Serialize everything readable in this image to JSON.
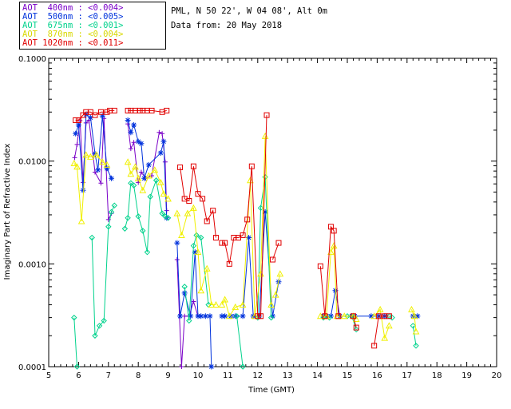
{
  "header": {
    "site": "PML, N 50 22', W 04 08', Alt 0m",
    "date": "Data from: 20 May 2018"
  },
  "legend": [
    {
      "label": "AOT  400nm : <0.004>",
      "color": "#7a00c8"
    },
    {
      "label": "AOT  500nm : <0.005>",
      "color": "#0032dc"
    },
    {
      "label": "AOT  675nm : <0.001>",
      "color": "#00d28c"
    },
    {
      "label": "AOT  870nm : <0.004>",
      "color": "#f0f000"
    },
    {
      "label": "AOT 1020nm : <0.011>",
      "color": "#e00000"
    }
  ],
  "chart_data": {
    "type": "line",
    "xlabel": "Time (GMT)",
    "ylabel": "Imaginary Part of Refractive Index",
    "xlim": [
      5,
      20
    ],
    "ylim": [
      0.0001,
      0.1
    ],
    "yscale": "log",
    "x_ticks": [
      "5",
      "6",
      "7",
      "8",
      "9",
      "10",
      "11",
      "12",
      "13",
      "14",
      "15",
      "16",
      "17",
      "18",
      "19",
      "20"
    ],
    "y_ticks": [
      "0.0001",
      "0.0010",
      "0.0100",
      "0.1000"
    ],
    "grid": false,
    "series": [
      {
        "name": "AOT  400nm : <0.004>",
        "color": "#7a00c8",
        "marker": "plus",
        "segments": [
          [
            [
              5.87,
              0.0108
            ],
            [
              5.95,
              0.0145
            ],
            [
              6.05,
              0.0248
            ],
            [
              6.15,
              0.0062
            ],
            [
              6.25,
              0.0235
            ],
            [
              6.35,
              0.025
            ],
            [
              6.55,
              0.0078
            ],
            [
              6.75,
              0.0061
            ],
            [
              6.85,
              0.026
            ],
            [
              7.0,
              0.0027
            ],
            [
              7.1,
              0.0031
            ]
          ],
          [
            [
              7.65,
              0.023
            ],
            [
              7.75,
              0.0132
            ],
            [
              7.85,
              0.0152
            ],
            [
              8.0,
              0.0062
            ],
            [
              8.1,
              0.0078
            ],
            [
              8.25,
              0.0068
            ],
            [
              8.45,
              0.0072
            ],
            [
              8.7,
              0.019
            ],
            [
              8.8,
              0.0185
            ],
            [
              8.9,
              0.0098
            ],
            [
              8.95,
              0.0033
            ]
          ],
          [
            [
              9.3,
              0.0011
            ],
            [
              9.45,
              0.0001
            ],
            [
              9.55,
              0.00031
            ],
            [
              9.7,
              0.00031
            ],
            [
              9.85,
              0.00043
            ],
            [
              10.0,
              0.00031
            ]
          ]
        ]
      },
      {
        "name": "AOT  500nm : <0.005>",
        "color": "#0032dc",
        "marker": "star",
        "segments": [
          [
            [
              5.9,
              0.0185
            ],
            [
              6.0,
              0.0225
            ],
            [
              6.15,
              0.0052
            ],
            [
              6.25,
              0.0285
            ],
            [
              6.4,
              0.0265
            ],
            [
              6.55,
              0.0118
            ],
            [
              6.65,
              0.0082
            ],
            [
              6.8,
              0.0275
            ],
            [
              6.95,
              0.0085
            ],
            [
              7.1,
              0.0068
            ]
          ],
          [
            [
              7.65,
              0.025
            ],
            [
              7.75,
              0.019
            ],
            [
              7.85,
              0.0225
            ],
            [
              8.0,
              0.0155
            ],
            [
              8.1,
              0.0148
            ],
            [
              8.2,
              0.0068
            ],
            [
              8.35,
              0.0092
            ],
            [
              8.75,
              0.012
            ],
            [
              8.85,
              0.0155
            ],
            [
              8.95,
              0.0028
            ]
          ],
          [
            [
              9.3,
              0.0016
            ],
            [
              9.4,
              0.00031
            ],
            [
              9.55,
              0.00052
            ],
            [
              9.75,
              0.00031
            ],
            [
              9.9,
              0.0013
            ],
            [
              10.0,
              0.00031
            ],
            [
              10.1,
              0.00031
            ],
            [
              10.25,
              0.00031
            ],
            [
              10.4,
              0.00031
            ],
            [
              10.45,
              0.0001
            ]
          ],
          [
            [
              10.8,
              0.00031
            ],
            [
              10.9,
              0.00031
            ],
            [
              11.1,
              0.00031
            ],
            [
              11.25,
              0.00031
            ],
            [
              11.5,
              0.00031
            ],
            [
              11.7,
              0.0018
            ],
            [
              11.85,
              0.00031
            ],
            [
              12.05,
              0.00031
            ],
            [
              12.25,
              0.0032
            ],
            [
              12.5,
              0.00031
            ],
            [
              12.7,
              0.00067
            ]
          ],
          [
            [
              14.2,
              0.00031
            ],
            [
              14.3,
              0.00031
            ],
            [
              14.45,
              0.00031
            ],
            [
              14.6,
              0.00055
            ],
            [
              14.75,
              0.00031
            ],
            [
              15.15,
              0.00031
            ],
            [
              15.25,
              0.00031
            ],
            [
              15.8,
              0.00031
            ],
            [
              16.05,
              0.00031
            ],
            [
              16.25,
              0.00031
            ]
          ],
          [
            [
              17.2,
              0.00031
            ],
            [
              17.35,
              0.00031
            ]
          ]
        ]
      },
      {
        "name": "AOT  675nm : <0.001>",
        "color": "#00d28c",
        "marker": "diamond",
        "segments": [
          [
            [
              5.85,
              0.0003
            ],
            [
              5.95,
              0.0001
            ]
          ],
          [
            [
              6.45,
              0.0018
            ],
            [
              6.55,
              0.0002
            ],
            [
              6.7,
              0.00025
            ],
            [
              6.85,
              0.00028
            ],
            [
              7.0,
              0.0023
            ],
            [
              7.1,
              0.0032
            ],
            [
              7.2,
              0.0037
            ]
          ],
          [
            [
              7.55,
              0.0022
            ],
            [
              7.65,
              0.0028
            ],
            [
              7.75,
              0.0061
            ],
            [
              7.85,
              0.0058
            ],
            [
              8.0,
              0.0029
            ],
            [
              8.15,
              0.0021
            ],
            [
              8.3,
              0.0013
            ],
            [
              8.4,
              0.0045
            ],
            [
              8.6,
              0.0065
            ],
            [
              8.8,
              0.0031
            ],
            [
              8.9,
              0.0029
            ],
            [
              9.0,
              0.0028
            ]
          ],
          [
            [
              9.55,
              0.0006
            ],
            [
              9.7,
              0.00028
            ],
            [
              9.85,
              0.0015
            ],
            [
              9.95,
              0.0019
            ],
            [
              10.1,
              0.0018
            ],
            [
              10.35,
              0.0004
            ]
          ],
          [
            [
              11.3,
              0.00031
            ],
            [
              11.5,
              0.0001
            ]
          ],
          [
            [
              12.0,
              0.0003
            ],
            [
              12.1,
              0.0035
            ],
            [
              12.25,
              0.007
            ],
            [
              12.45,
              0.0003
            ]
          ],
          [
            [
              14.2,
              0.0003
            ],
            [
              14.4,
              0.0003
            ]
          ],
          [
            [
              15.0,
              0.00031
            ],
            [
              15.15,
              0.00031
            ],
            [
              15.3,
              0.00023
            ]
          ],
          [
            [
              16.4,
              0.00031
            ],
            [
              16.5,
              0.0003
            ]
          ],
          [
            [
              17.2,
              0.00025
            ],
            [
              17.3,
              0.00016
            ]
          ]
        ]
      },
      {
        "name": "AOT  870nm : <0.004>",
        "color": "#f0f000",
        "marker": "triangle",
        "segments": [
          [
            [
              5.85,
              0.0095
            ],
            [
              5.95,
              0.0088
            ],
            [
              6.1,
              0.0026
            ],
            [
              6.25,
              0.0115
            ],
            [
              6.4,
              0.011
            ],
            [
              6.6,
              0.0115
            ],
            [
              6.8,
              0.0098
            ],
            [
              6.95,
              0.0092
            ]
          ],
          [
            [
              7.65,
              0.0098
            ],
            [
              7.75,
              0.0075
            ],
            [
              7.9,
              0.0088
            ],
            [
              8.0,
              0.0068
            ],
            [
              8.15,
              0.0052
            ],
            [
              8.35,
              0.0072
            ],
            [
              8.55,
              0.0082
            ],
            [
              8.75,
              0.0062
            ],
            [
              8.85,
              0.0048
            ],
            [
              9.0,
              0.0043
            ]
          ],
          [
            [
              9.3,
              0.0031
            ],
            [
              9.45,
              0.0019
            ],
            [
              9.65,
              0.0031
            ],
            [
              9.85,
              0.0035
            ],
            [
              10.0,
              0.0013
            ],
            [
              10.1,
              0.00055
            ],
            [
              10.3,
              0.0009
            ],
            [
              10.45,
              0.0004
            ],
            [
              10.6,
              0.0004
            ]
          ],
          [
            [
              10.8,
              0.0004
            ],
            [
              10.9,
              0.00045
            ],
            [
              11.05,
              0.00031
            ],
            [
              11.25,
              0.00038
            ],
            [
              11.5,
              0.0004
            ],
            [
              11.75,
              0.0065
            ],
            [
              11.9,
              0.00031
            ],
            [
              12.1,
              0.0008
            ],
            [
              12.25,
              0.0175
            ],
            [
              12.45,
              0.0004
            ]
          ],
          [
            [
              12.6,
              0.0005
            ],
            [
              12.75,
              0.0008
            ]
          ],
          [
            [
              14.1,
              0.00031
            ],
            [
              14.3,
              0.00031
            ],
            [
              14.45,
              0.0013
            ],
            [
              14.55,
              0.0015
            ],
            [
              14.65,
              0.00031
            ],
            [
              14.9,
              0.00031
            ],
            [
              15.2,
              0.00031
            ],
            [
              15.3,
              0.00029
            ]
          ],
          [
            [
              15.9,
              0.00031
            ],
            [
              16.1,
              0.00036
            ],
            [
              16.25,
              0.00019
            ],
            [
              16.4,
              0.00025
            ]
          ],
          [
            [
              17.15,
              0.00036
            ],
            [
              17.25,
              0.00031
            ],
            [
              17.3,
              0.00022
            ]
          ]
        ]
      },
      {
        "name": "AOT 1020nm : <0.011>",
        "color": "#e00000",
        "marker": "square",
        "segments": [
          [
            [
              5.9,
              0.025
            ],
            [
              6.0,
              0.025
            ],
            [
              6.15,
              0.028
            ],
            [
              6.25,
              0.03
            ],
            [
              6.4,
              0.03
            ],
            [
              6.55,
              0.028
            ],
            [
              6.75,
              0.03
            ],
            [
              6.95,
              0.03
            ],
            [
              7.05,
              0.031
            ],
            [
              7.2,
              0.031
            ]
          ],
          [
            [
              7.65,
              0.031
            ],
            [
              7.75,
              0.031
            ],
            [
              7.9,
              0.031
            ],
            [
              8.05,
              0.031
            ],
            [
              8.15,
              0.031
            ],
            [
              8.3,
              0.031
            ],
            [
              8.45,
              0.031
            ],
            [
              8.8,
              0.03
            ],
            [
              8.95,
              0.031
            ]
          ],
          [
            [
              9.4,
              0.0087
            ],
            [
              9.55,
              0.0043
            ],
            [
              9.7,
              0.0041
            ],
            [
              9.85,
              0.0089
            ],
            [
              10.0,
              0.0048
            ],
            [
              10.15,
              0.0043
            ],
            [
              10.3,
              0.0026
            ],
            [
              10.5,
              0.0033
            ],
            [
              10.6,
              0.0018
            ]
          ],
          [
            [
              10.8,
              0.0016
            ],
            [
              10.9,
              0.0016
            ],
            [
              11.05,
              0.001
            ],
            [
              11.2,
              0.0018
            ],
            [
              11.35,
              0.0018
            ],
            [
              11.5,
              0.0019
            ],
            [
              11.65,
              0.0027
            ],
            [
              11.8,
              0.0089
            ],
            [
              12.0,
              0.00031
            ],
            [
              12.1,
              0.00031
            ],
            [
              12.3,
              0.028
            ]
          ],
          [
            [
              12.5,
              0.0011
            ],
            [
              12.7,
              0.0016
            ]
          ],
          [
            [
              14.1,
              0.00095
            ],
            [
              14.25,
              0.00031
            ],
            [
              14.45,
              0.0023
            ],
            [
              14.55,
              0.0021
            ],
            [
              14.7,
              0.00031
            ]
          ],
          [
            [
              15.2,
              0.00031
            ],
            [
              15.3,
              0.00024
            ]
          ],
          [
            [
              15.9,
              0.00016
            ],
            [
              16.05,
              0.00031
            ],
            [
              16.25,
              0.00031
            ],
            [
              16.4,
              0.00031
            ]
          ]
        ]
      }
    ]
  }
}
